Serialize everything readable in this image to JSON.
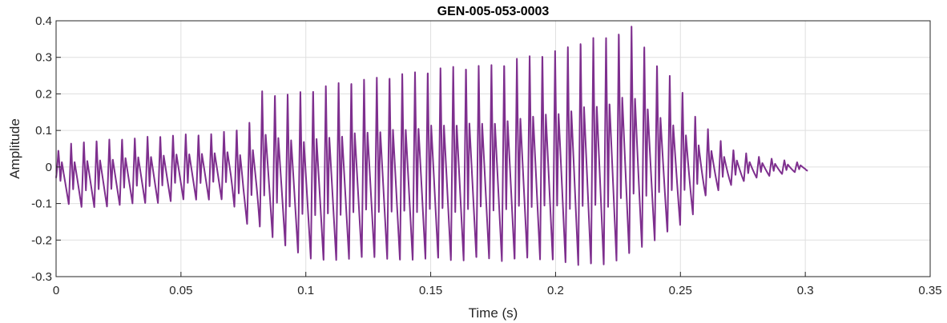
{
  "chart_data": {
    "type": "line",
    "title": "GEN-005-053-0003",
    "xlabel": "Time (s)",
    "ylabel": "Amplitude",
    "xlim": [
      0,
      0.35
    ],
    "ylim": [
      -0.3,
      0.4
    ],
    "xticks": [
      0,
      0.05,
      0.1,
      0.15,
      0.2,
      0.25,
      0.3,
      0.35
    ],
    "xtick_labels": [
      "0",
      "0.05",
      "0.1",
      "0.15",
      "0.2",
      "0.25",
      "0.3",
      "0.35"
    ],
    "yticks": [
      -0.3,
      -0.2,
      -0.1,
      0,
      0.1,
      0.2,
      0.3,
      0.4
    ],
    "ytick_labels": [
      "-0.3",
      "-0.2",
      "-0.1",
      "0",
      "0.1",
      "0.2",
      "0.3",
      "0.4"
    ],
    "grid": true,
    "line_color": "#7E2F8E",
    "series": [
      {
        "x": [
          0,
          0.003,
          0.01,
          0.02,
          0.03,
          0.04,
          0.05,
          0.06,
          0.07,
          0.075,
          0.08,
          0.082,
          0.09,
          0.1,
          0.11,
          0.12,
          0.13,
          0.14,
          0.15,
          0.16,
          0.17,
          0.18,
          0.19,
          0.2,
          0.21,
          0.22,
          0.23,
          0.24,
          0.25,
          0.255,
          0.26,
          0.27,
          0.28,
          0.29,
          0.3,
          0.301
        ],
        "upper": [
          0.04,
          0.06,
          0.07,
          0.075,
          0.08,
          0.085,
          0.09,
          0.09,
          0.1,
          0.11,
          0.14,
          0.21,
          0.2,
          0.21,
          0.23,
          0.24,
          0.25,
          0.26,
          0.27,
          0.28,
          0.28,
          0.29,
          0.31,
          0.32,
          0.35,
          0.36,
          0.39,
          0.29,
          0.22,
          0.15,
          0.11,
          0.05,
          0.03,
          0.02,
          0.01,
          -0.01
        ],
        "lower": [
          -0.03,
          -0.1,
          -0.11,
          -0.11,
          -0.1,
          -0.1,
          -0.09,
          -0.09,
          -0.09,
          -0.16,
          -0.15,
          -0.17,
          -0.21,
          -0.25,
          -0.26,
          -0.25,
          -0.25,
          -0.26,
          -0.25,
          -0.26,
          -0.25,
          -0.26,
          -0.25,
          -0.26,
          -0.27,
          -0.27,
          -0.24,
          -0.2,
          -0.16,
          -0.13,
          -0.08,
          -0.05,
          -0.03,
          -0.02,
          -0.01,
          -0.01
        ],
        "approx_period_s": 0.0051
      }
    ]
  }
}
